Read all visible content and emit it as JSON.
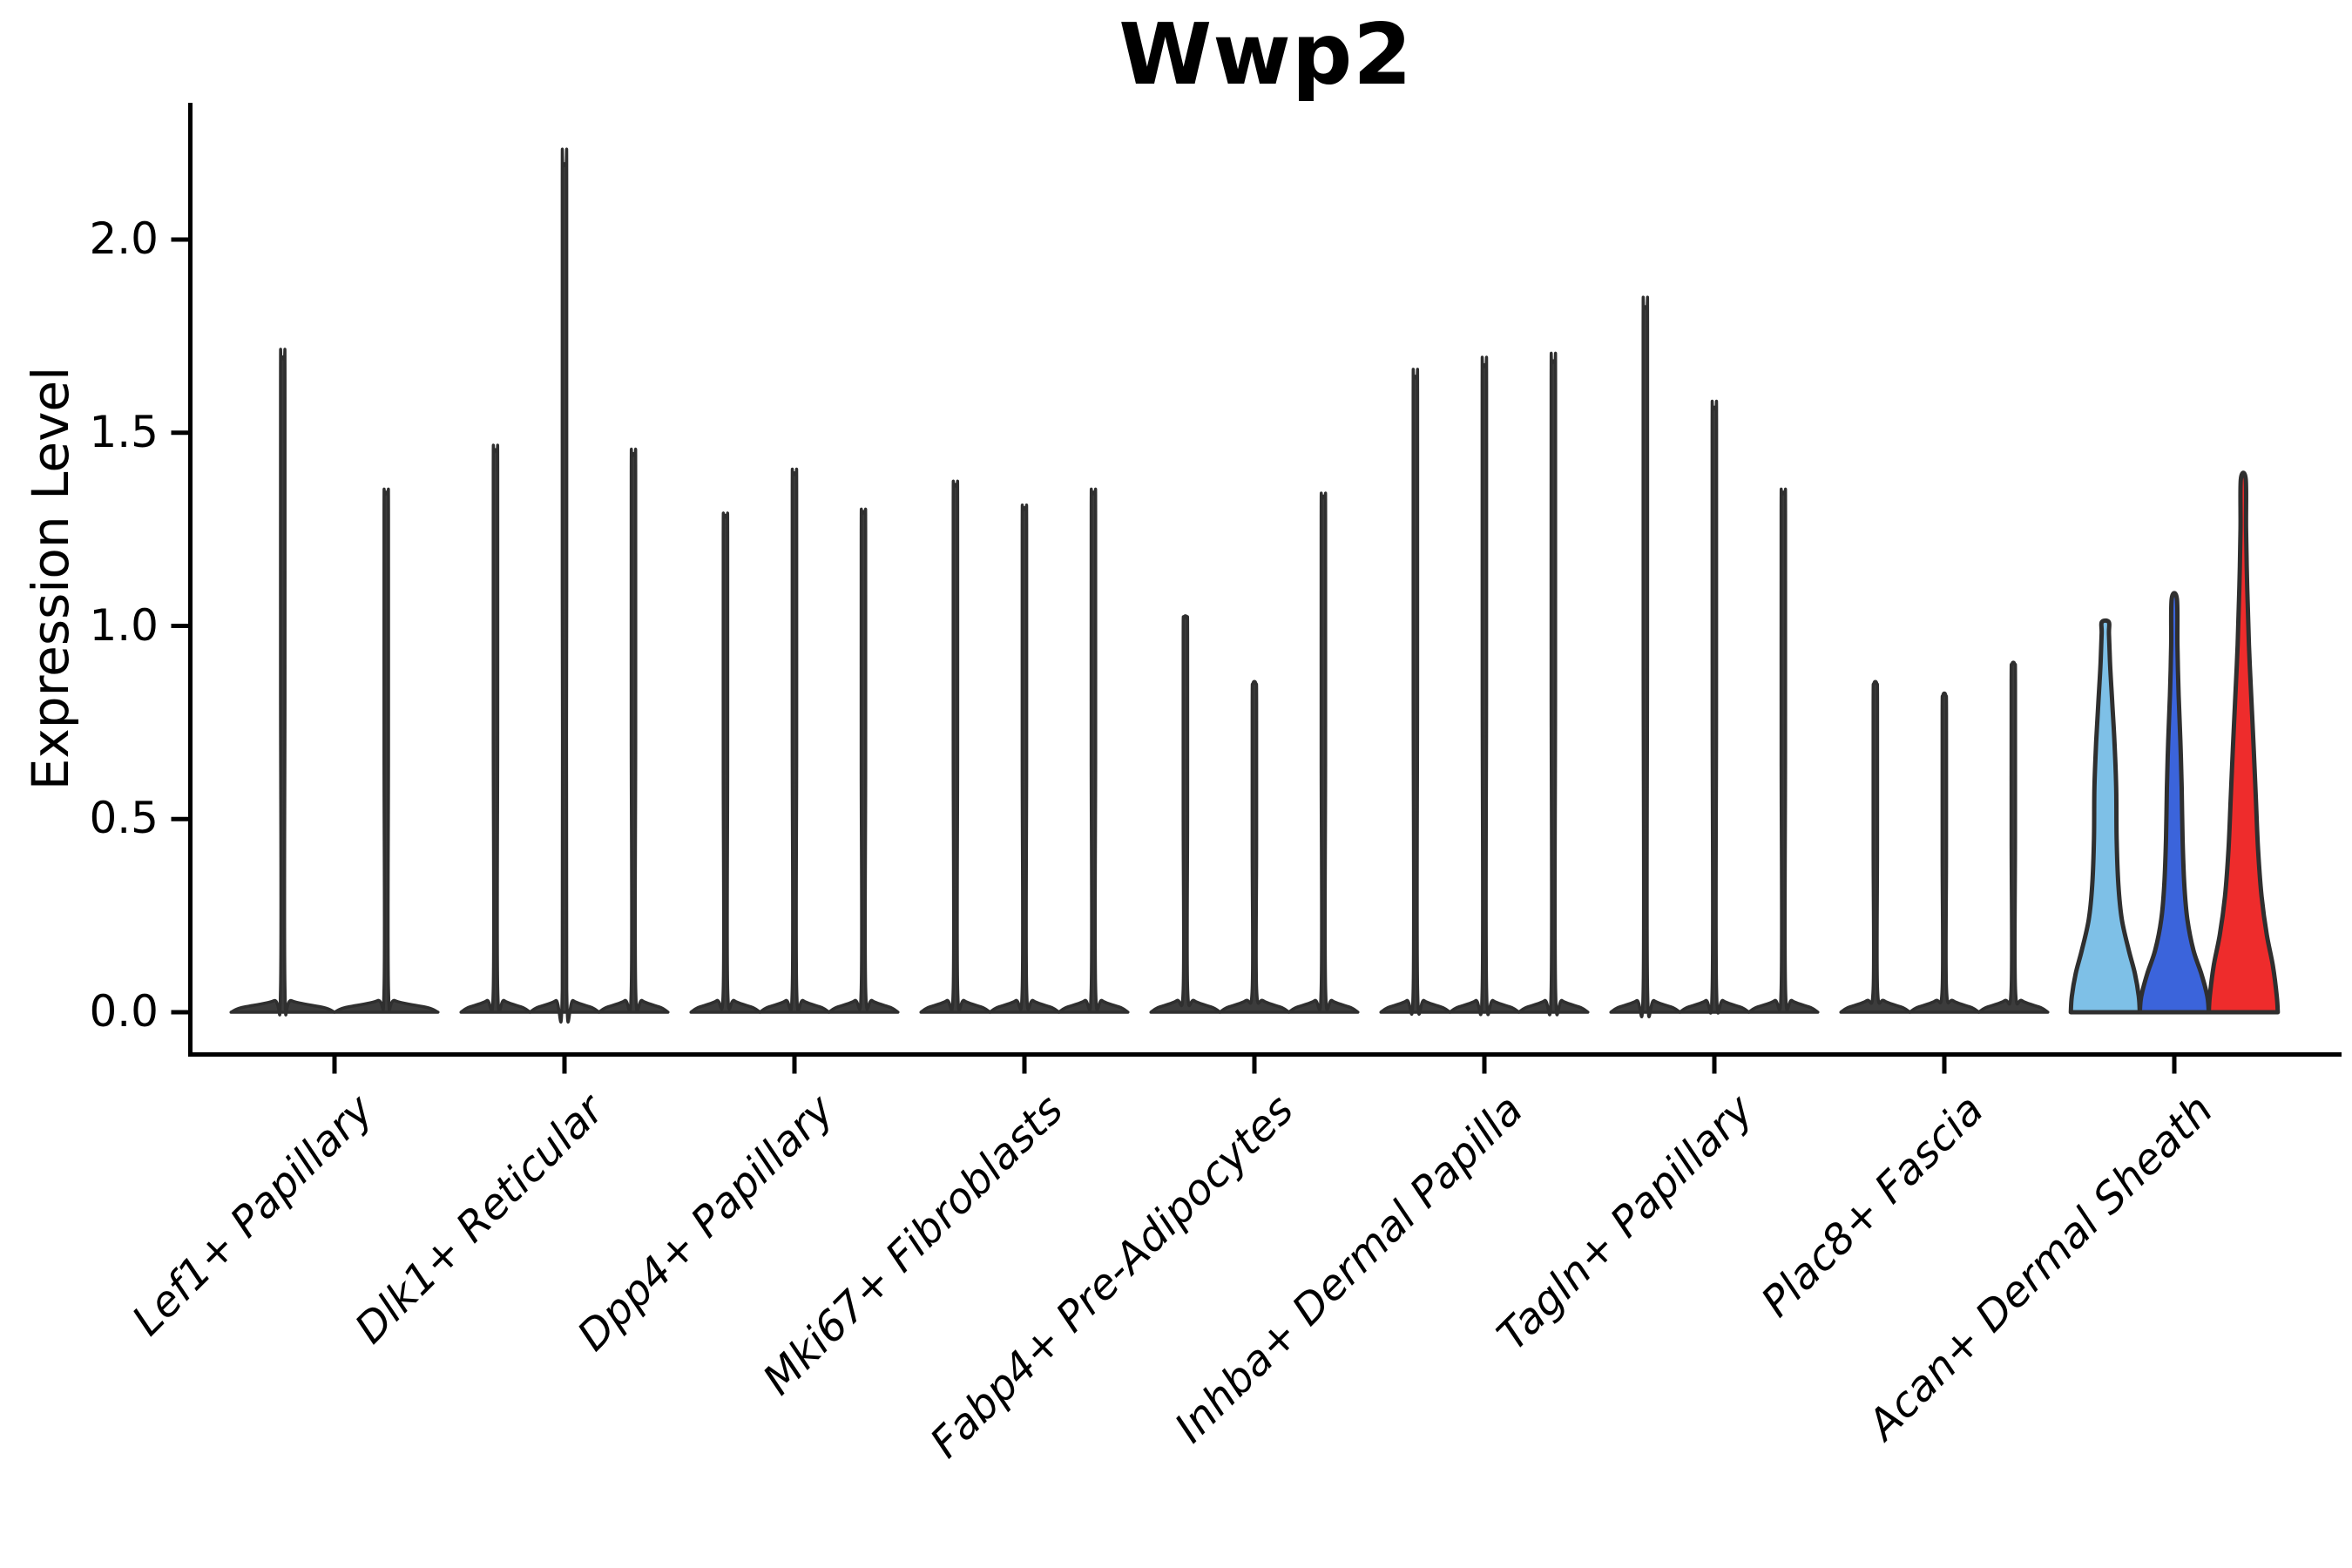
{
  "chart_data": {
    "type": "violin",
    "title": "Wwp2",
    "ylabel": "Expression Level",
    "xlabel": "",
    "legend": "none",
    "grid": false,
    "ylim": [
      -0.11,
      2.35
    ],
    "yticks": [
      {
        "label": "0.0",
        "value": 0.0
      },
      {
        "label": "0.5",
        "value": 0.5
      },
      {
        "label": "1.0",
        "value": 1.0
      },
      {
        "label": "1.5",
        "value": 1.5
      },
      {
        "label": "2.0",
        "value": 2.0
      }
    ],
    "categories": [
      "Lef1+ Papillary",
      "Dlk1+ Reticular",
      "Dpp4+ Papillary",
      "Mki67+ Fibroblasts",
      "Fabp4+ Pre-Adipocytes",
      "Inhba+ Dermal Papilla",
      "Tagln+ Papillary",
      "Plac8+ Fascia",
      "Acan+ Dermal Sheath"
    ],
    "groups": [
      {
        "category": "Lef1+ Papillary",
        "violins": [
          {
            "max": 1.69
          },
          {
            "max": 1.34
          }
        ]
      },
      {
        "category": "Dlk1+ Reticular",
        "violins": [
          {
            "max": 1.45
          },
          {
            "max": 2.19
          },
          {
            "max": 1.44
          }
        ]
      },
      {
        "category": "Dpp4+ Papillary",
        "violins": [
          {
            "max": 1.28
          },
          {
            "max": 1.39
          },
          {
            "max": 1.29
          }
        ]
      },
      {
        "category": "Mki67+ Fibroblasts",
        "violins": [
          {
            "max": 1.36
          },
          {
            "max": 1.3
          },
          {
            "max": 1.34
          }
        ]
      },
      {
        "category": "Fabp4+ Pre-Adipocytes",
        "violins": [
          {
            "max": 1.02
          },
          {
            "max": 0.85
          },
          {
            "max": 1.33
          }
        ]
      },
      {
        "category": "Inhba+ Dermal Papilla",
        "violins": [
          {
            "max": 1.64
          },
          {
            "max": 1.67
          },
          {
            "max": 1.68
          }
        ]
      },
      {
        "category": "Tagln+ Papillary",
        "violins": [
          {
            "max": 1.82
          },
          {
            "max": 1.56
          },
          {
            "max": 1.34
          }
        ]
      },
      {
        "category": "Plac8+ Fascia",
        "violins": [
          {
            "max": 0.85
          },
          {
            "max": 0.82
          },
          {
            "max": 0.9
          }
        ]
      },
      {
        "category": "Acan+ Dermal Sheath",
        "violins": [
          {
            "max": 1.01,
            "fill": "#7EC0E7",
            "profile": [
              [
                0,
                39.6
              ],
              [
                0.04,
                38.5
              ],
              [
                0.1,
                34
              ],
              [
                0.16,
                27
              ],
              [
                0.24,
                19
              ],
              [
                0.33,
                15
              ],
              [
                0.45,
                13
              ],
              [
                0.58,
                12.5
              ],
              [
                0.7,
                10.5
              ],
              [
                0.8,
                8
              ],
              [
                0.9,
                5.5
              ],
              [
                0.98,
                4.2
              ],
              [
                1.01,
                4
              ]
            ]
          },
          {
            "max": 1.07,
            "fill": "#3B64DB",
            "profile": [
              [
                0,
                39.6
              ],
              [
                0.04,
                38
              ],
              [
                0.1,
                31
              ],
              [
                0.16,
                22
              ],
              [
                0.24,
                15
              ],
              [
                0.33,
                11.5
              ],
              [
                0.45,
                9.5
              ],
              [
                0.58,
                8.5
              ],
              [
                0.7,
                7
              ],
              [
                0.82,
                5
              ],
              [
                0.95,
                3.6
              ],
              [
                1.07,
                3
              ]
            ]
          },
          {
            "max": 1.38,
            "fill": "#EE2C2C",
            "profile": [
              [
                0,
                39.6
              ],
              [
                0.04,
                38.5
              ],
              [
                0.12,
                34
              ],
              [
                0.2,
                27
              ],
              [
                0.3,
                21
              ],
              [
                0.42,
                17
              ],
              [
                0.55,
                14.5
              ],
              [
                0.68,
                12
              ],
              [
                0.8,
                9.5
              ],
              [
                0.95,
                6.5
              ],
              [
                1.1,
                4.5
              ],
              [
                1.25,
                3.2
              ],
              [
                1.38,
                2.8
              ]
            ]
          }
        ]
      }
    ],
    "colors": {
      "axis": "#000000",
      "violin_outline": "#2f2f2f",
      "violin_thin_fill": "#3c3c3c",
      "highlight_palette": [
        "#7EC0E7",
        "#3B64DB",
        "#EE2C2C"
      ]
    }
  }
}
